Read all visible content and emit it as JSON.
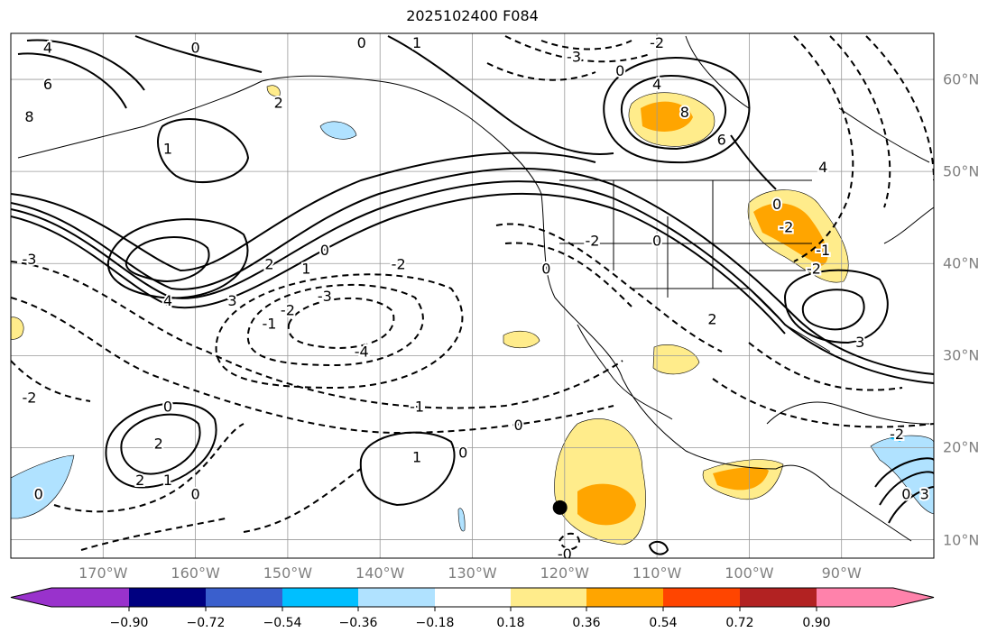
{
  "title": "2025102400 F084",
  "map": {
    "extent": {
      "lon_min": -180,
      "lon_max": -80,
      "lat_min": 8,
      "lat_max": 65
    },
    "lon_labels": [
      {
        "lon": -170,
        "text": "170°W"
      },
      {
        "lon": -160,
        "text": "160°W"
      },
      {
        "lon": -150,
        "text": "150°W"
      },
      {
        "lon": -140,
        "text": "140°W"
      },
      {
        "lon": -130,
        "text": "130°W"
      },
      {
        "lon": -120,
        "text": "120°W"
      },
      {
        "lon": -110,
        "text": "110°W"
      },
      {
        "lon": -100,
        "text": "100°W"
      },
      {
        "lon": -90,
        "text": "90°W"
      }
    ],
    "lat_labels": [
      {
        "lat": 60,
        "text": "60°N"
      },
      {
        "lat": 50,
        "text": "50°N"
      },
      {
        "lat": 40,
        "text": "40°N"
      },
      {
        "lat": 30,
        "text": "30°N"
      },
      {
        "lat": 20,
        "text": "20°N"
      },
      {
        "lat": 10,
        "text": "10°N"
      }
    ],
    "contour_labels": [
      {
        "text": "4",
        "lon": -176,
        "lat": 63.5
      },
      {
        "text": "6",
        "lon": -176,
        "lat": 59.5
      },
      {
        "text": "8",
        "lon": -178,
        "lat": 56
      },
      {
        "text": "0",
        "lon": -160,
        "lat": 63.5
      },
      {
        "text": "2",
        "lon": -151,
        "lat": 57.5
      },
      {
        "text": "1",
        "lon": -163,
        "lat": 52.5
      },
      {
        "text": "0",
        "lon": -142,
        "lat": 64
      },
      {
        "text": "1",
        "lon": -136,
        "lat": 64
      },
      {
        "text": "-3",
        "lon": -119,
        "lat": 62.5
      },
      {
        "text": "-2",
        "lon": -110,
        "lat": 64
      },
      {
        "text": "0",
        "lon": -114,
        "lat": 61
      },
      {
        "text": "4",
        "lon": -110,
        "lat": 59.5
      },
      {
        "text": "8",
        "lon": -107,
        "lat": 56.5
      },
      {
        "text": "6",
        "lon": -103,
        "lat": 53.5
      },
      {
        "text": "4",
        "lon": -92,
        "lat": 50.5
      },
      {
        "text": "0",
        "lon": -97,
        "lat": 46.5
      },
      {
        "text": "-2",
        "lon": -96,
        "lat": 44
      },
      {
        "text": "-1",
        "lon": -92,
        "lat": 41.5
      },
      {
        "text": "-2",
        "lon": -93,
        "lat": 39.5
      },
      {
        "text": "3",
        "lon": -88,
        "lat": 31.5
      },
      {
        "text": "4",
        "lon": -163,
        "lat": 36
      },
      {
        "text": "3",
        "lon": -156,
        "lat": 36
      },
      {
        "text": "2",
        "lon": -152,
        "lat": 40
      },
      {
        "text": "1",
        "lon": -148,
        "lat": 39.5
      },
      {
        "text": "0",
        "lon": -146,
        "lat": 41.5
      },
      {
        "text": "-1",
        "lon": -152,
        "lat": 33.5
      },
      {
        "text": "-2",
        "lon": -150,
        "lat": 35
      },
      {
        "text": "-3",
        "lon": -146,
        "lat": 36.5
      },
      {
        "text": "-4",
        "lon": -142,
        "lat": 30.5
      },
      {
        "text": "-2",
        "lon": -138,
        "lat": 40
      },
      {
        "text": "-1",
        "lon": -136,
        "lat": 24.5
      },
      {
        "text": "0",
        "lon": -125,
        "lat": 22.5
      },
      {
        "text": "-3",
        "lon": -178,
        "lat": 40.5
      },
      {
        "text": "-2",
        "lon": -178,
        "lat": 25.5
      },
      {
        "text": "0",
        "lon": -163,
        "lat": 24.5
      },
      {
        "text": "2",
        "lon": -164,
        "lat": 20.5
      },
      {
        "text": "2",
        "lon": -166,
        "lat": 16.5
      },
      {
        "text": "1",
        "lon": -163,
        "lat": 16.5
      },
      {
        "text": "0",
        "lon": -160,
        "lat": 15
      },
      {
        "text": "0",
        "lon": -177,
        "lat": 15
      },
      {
        "text": "0",
        "lon": -131,
        "lat": 19.5
      },
      {
        "text": "1",
        "lon": -136,
        "lat": 19
      },
      {
        "text": "-0",
        "lon": -120,
        "lat": 8.5
      },
      {
        "text": "0",
        "lon": -110,
        "lat": 42.5
      },
      {
        "text": "-2",
        "lon": -117,
        "lat": 42.5
      },
      {
        "text": "0",
        "lon": -122,
        "lat": 39.5
      },
      {
        "text": "2",
        "lon": -104,
        "lat": 34
      },
      {
        "text": "-2",
        "lon": -84,
        "lat": 21.5
      },
      {
        "text": "0",
        "lon": -83,
        "lat": 15
      },
      {
        "text": "3",
        "lon": -81,
        "lat": 15
      }
    ],
    "marker": {
      "lon": -120.5,
      "lat": 13.5
    }
  },
  "colorbar": {
    "colors": [
      "#9932cc",
      "#000080",
      "#3a5fcd",
      "#00bfff",
      "#b0e2ff",
      "#ffffff",
      "#ffec8b",
      "#ffa500",
      "#ff4500",
      "#b22222",
      "#ff82ab"
    ],
    "ticks": [
      "−0.90",
      "−0.72",
      "−0.54",
      "−0.36",
      "−0.18",
      "0.18",
      "0.36",
      "0.54",
      "0.72",
      "0.90"
    ]
  }
}
